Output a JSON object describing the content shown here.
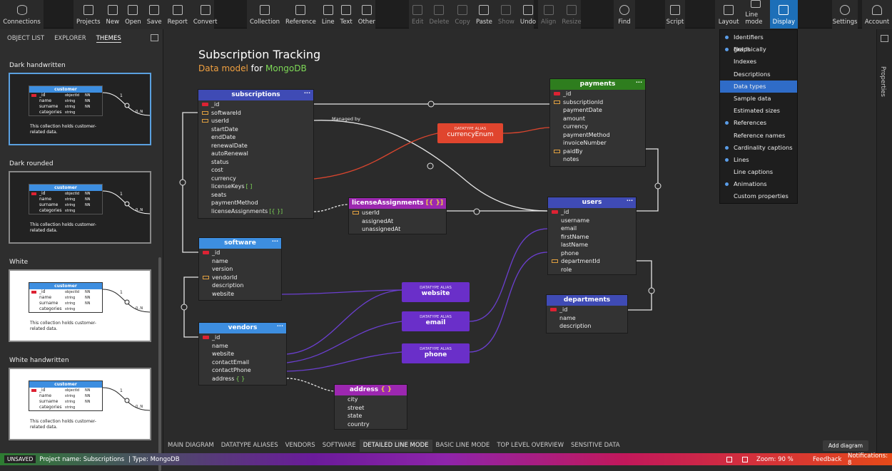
{
  "toolbar": {
    "connections": "Connections",
    "file": [
      {
        "label": "Projects",
        "icon": "folder-stack-icon"
      },
      {
        "label": "New",
        "icon": "new-file-icon"
      },
      {
        "label": "Open",
        "icon": "open-folder-icon"
      },
      {
        "label": "Save",
        "icon": "save-icon"
      },
      {
        "label": "Report",
        "icon": "report-icon"
      },
      {
        "label": "Convert",
        "icon": "convert-icon"
      }
    ],
    "insert": [
      {
        "label": "Collection",
        "icon": "collection-icon"
      },
      {
        "label": "Reference",
        "icon": "reference-icon"
      },
      {
        "label": "Line",
        "icon": "line-icon"
      },
      {
        "label": "Text",
        "icon": "text-icon"
      },
      {
        "label": "Other",
        "icon": "other-icon"
      }
    ],
    "edit": [
      {
        "label": "Edit",
        "icon": "edit-icon"
      },
      {
        "label": "Delete",
        "icon": "delete-icon"
      },
      {
        "label": "Copy",
        "icon": "copy-icon"
      },
      {
        "label": "Paste",
        "icon": "paste-icon"
      },
      {
        "label": "Show",
        "icon": "eye-icon"
      },
      {
        "label": "Undo",
        "icon": "undo-icon"
      }
    ],
    "arrange": [
      {
        "label": "Align",
        "icon": "align-icon"
      },
      {
        "label": "Resize",
        "icon": "resize-icon"
      }
    ],
    "find": "Find",
    "script": "Script",
    "view": [
      {
        "label": "Layout",
        "icon": "layout-icon"
      },
      {
        "label": "Line mode",
        "icon": "line-mode-icon"
      },
      {
        "label": "Display",
        "icon": "display-icon"
      }
    ],
    "settings": "Settings",
    "account": "Account"
  },
  "left_panel": {
    "tabs": [
      "OBJECT LIST",
      "EXPLORER",
      "THEMES"
    ],
    "active_tab": "THEMES",
    "themes": [
      {
        "name": "Dark handwritten",
        "bg": "#222222",
        "fg": "#ffffff"
      },
      {
        "name": "Dark rounded",
        "bg": "#222222",
        "fg": "#ffffff"
      },
      {
        "name": "White",
        "bg": "#ffffff",
        "fg": "#222222"
      },
      {
        "name": "White handwritten",
        "bg": "#ffffff",
        "fg": "#222222"
      }
    ],
    "preview": {
      "table": "customer",
      "rows": [
        {
          "name": "_id",
          "type": "objectId",
          "flag": "NN"
        },
        {
          "name": "name",
          "type": "string",
          "flag": "NN"
        },
        {
          "name": "surname",
          "type": "string",
          "flag": "NN"
        },
        {
          "name": "categories",
          "type": "string",
          "flag": ""
        }
      ],
      "note": "This collection holds customer-related data.",
      "cardinality": "1",
      "many": "0..N"
    }
  },
  "diagram": {
    "title": "Subscription Tracking",
    "subtitle_a": "Data model",
    "subtitle_b": "for",
    "subtitle_c": "MongoDB",
    "edge_label": "Managed by",
    "entities": {
      "subscriptions": {
        "name": "subscriptions",
        "fields": [
          "_id",
          "softwareId",
          "userId",
          "startDate",
          "endDate",
          "renewalDate",
          "autoRenewal",
          "status",
          "cost",
          "currency",
          "licenseKeys",
          "seats",
          "paymentMethod",
          "licenseAssignments"
        ]
      },
      "payments": {
        "name": "payments",
        "fields": [
          "_id",
          "subscriptionId",
          "paymentDate",
          "amount",
          "currency",
          "paymentMethod",
          "invoiceNumber",
          "paidBy",
          "notes"
        ]
      },
      "licenseAssignments": {
        "name": "licenseAssignments",
        "fields": [
          "userId",
          "assignedAt",
          "unassignedAt"
        ]
      },
      "users": {
        "name": "users",
        "fields": [
          "_id",
          "username",
          "email",
          "firstName",
          "lastName",
          "phone",
          "departmentId",
          "role"
        ]
      },
      "software": {
        "name": "software",
        "fields": [
          "_id",
          "name",
          "version",
          "vendorId",
          "description",
          "website"
        ]
      },
      "vendors": {
        "name": "vendors",
        "fields": [
          "_id",
          "name",
          "website",
          "contactEmail",
          "contactPhone",
          "address"
        ]
      },
      "departments": {
        "name": "departments",
        "fields": [
          "_id",
          "name",
          "description"
        ]
      },
      "address": {
        "name": "address",
        "fields": [
          "city",
          "street",
          "state",
          "country"
        ]
      }
    },
    "aliases": {
      "kind": "DATATYPE ALIAS",
      "currencyEnum": "currencyEnum",
      "website": "website",
      "email": "email",
      "phone": "phone"
    },
    "symbols": {
      "array": "[ ]",
      "object": "{ }",
      "array_object": "[{ }]",
      "dots": "···"
    }
  },
  "display_menu": {
    "items": [
      {
        "label": "Identifiers graphically",
        "on": true
      },
      {
        "label": "Fields",
        "on": true
      },
      {
        "label": "Indexes",
        "on": false
      },
      {
        "label": "Descriptions",
        "on": false
      },
      {
        "label": "Data types",
        "on": false,
        "highlighted": true
      },
      {
        "label": "Sample data",
        "on": false
      },
      {
        "label": "Estimated sizes",
        "on": false
      },
      {
        "label": "References",
        "on": true
      },
      {
        "label": "Reference names",
        "on": false
      },
      {
        "label": "Cardinality captions",
        "on": true
      },
      {
        "label": "Lines",
        "on": true
      },
      {
        "label": "Line captions",
        "on": false
      },
      {
        "label": "Animations",
        "on": true
      },
      {
        "label": "Custom properties",
        "on": false
      }
    ]
  },
  "right_sidebar": {
    "label": "Properties"
  },
  "bottom_tabs": {
    "tabs": [
      "MAIN DIAGRAM",
      "DATATYPE ALIASES",
      "VENDORS",
      "SOFTWARE",
      "DETAILED LINE MODE",
      "BASIC LINE MODE",
      "TOP LEVEL OVERVIEW",
      "SENSITIVE DATA"
    ],
    "active": "DETAILED LINE MODE",
    "add_button": "Add diagram"
  },
  "status": {
    "unsaved": "UNSAVED",
    "project": "Project name: Subscriptions",
    "type": "| Type: MongoDB",
    "zoom": "Zoom: 90 %",
    "feedback": "Feedback",
    "notifications": "Notifications: 8"
  },
  "colors": {
    "blue_header": "#3f4bb5",
    "light_blue_header": "#3d8ee0",
    "green_header": "#2e7d1e",
    "purple_header": "#5b2fbf",
    "magenta_header": "#9c27b0",
    "alias_red": "#e0452e",
    "alias_purple": "#6a2fc9",
    "line_white": "#e6e6e6",
    "line_purple": "#6b3fd0",
    "line_red": "#d9452e"
  }
}
